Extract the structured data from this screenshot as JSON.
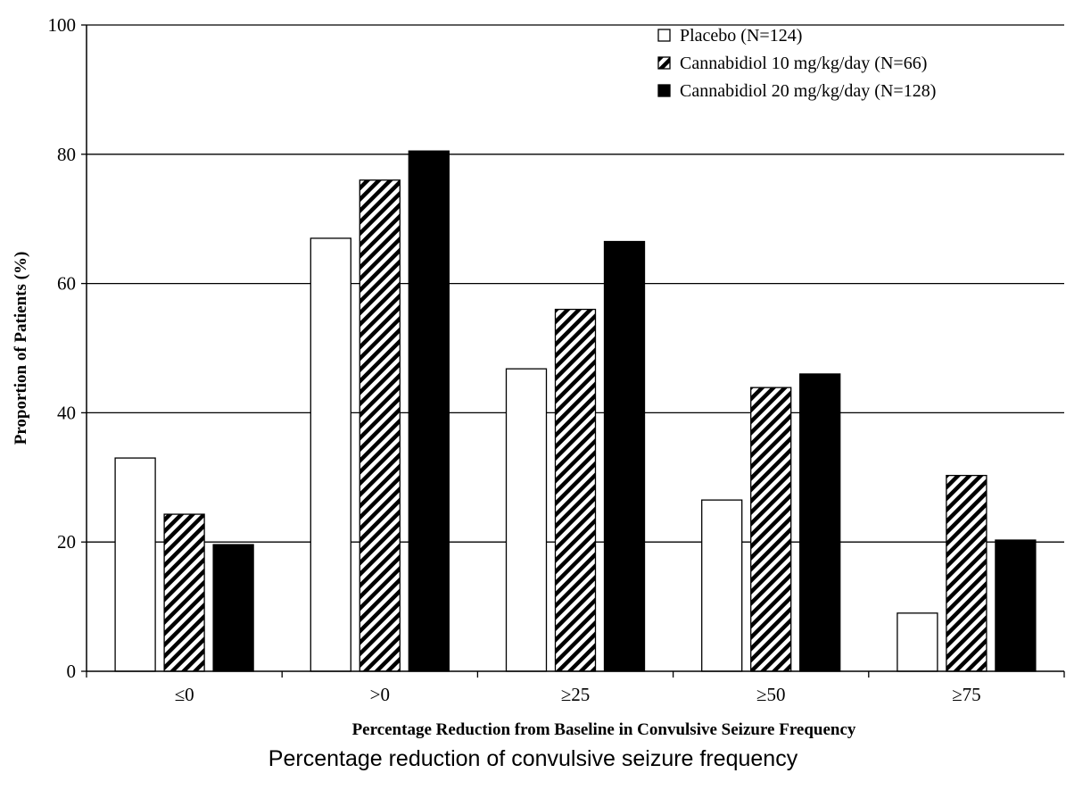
{
  "chart_data": {
    "type": "bar",
    "title": "",
    "xlabel": "Percentage Reduction from Baseline in Convulsive Seizure Frequency",
    "ylabel": "Proportion of Patients (%)",
    "ylim": [
      0,
      100
    ],
    "yticks": [
      0,
      20,
      40,
      60,
      80,
      100
    ],
    "grid": true,
    "legend_position": "top-right",
    "categories": [
      "≤0",
      ">0",
      "≥25",
      "≥50",
      "≥75"
    ],
    "series": [
      {
        "name": "Placebo (N=124)",
        "values": [
          33,
          67,
          46.8,
          26.5,
          9
        ],
        "fill": "white"
      },
      {
        "name": "Cannabidiol 10 mg/kg/day (N=66)",
        "values": [
          24.3,
          76,
          56,
          43.9,
          30.3
        ],
        "fill": "hatched"
      },
      {
        "name": "Cannabidiol 20 mg/kg/day (N=128)",
        "values": [
          19.6,
          80.5,
          66.5,
          46,
          20.3
        ],
        "fill": "black"
      }
    ]
  },
  "caption": "Percentage reduction of convulsive seizure frequency",
  "colors": {
    "bar_fill_black": "#000000",
    "bar_fill_white": "#ffffff",
    "axis": "#000000"
  }
}
